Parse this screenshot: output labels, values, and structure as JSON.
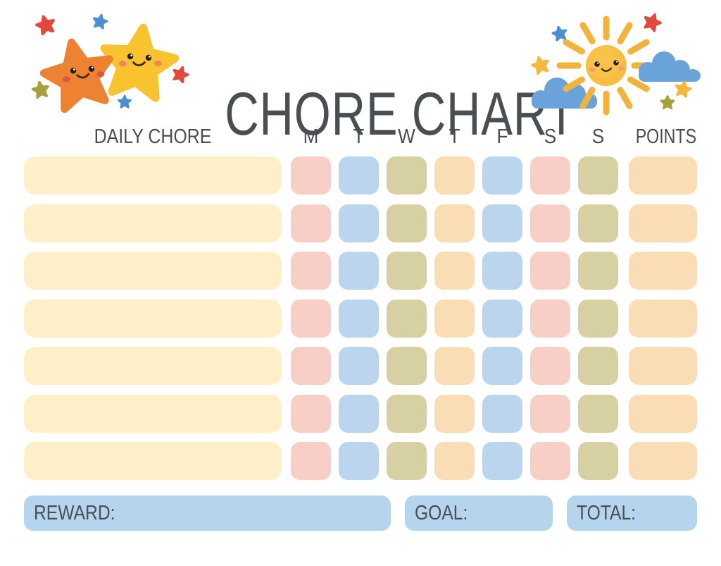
{
  "title": "CHORE CHART",
  "colors": {
    "cream": "#fdf0c9",
    "pink": "#f8cfc7",
    "blue": "#bad5ed",
    "olive": "#d6d0a3",
    "peach": "#fbddb5",
    "footer_blue": "#b5d4ed",
    "text": "#494e53",
    "star_orange": "#ee8233",
    "star_yellow": "#f9c32f",
    "sun_yellow": "#f9bd3f",
    "cloud_blue": "#69a3da"
  },
  "header": {
    "chore_label": "DAILY CHORE",
    "day_labels": [
      "M",
      "T",
      "W",
      "T",
      "F",
      "S",
      "S"
    ],
    "points_label": "POINTS"
  },
  "rows": [
    {
      "chore_value": "",
      "chore_color": "cream",
      "day_colors": [
        "pink",
        "blue",
        "olive",
        "peach",
        "blue",
        "pink",
        "olive"
      ],
      "points_color": "peach",
      "points_value": ""
    },
    {
      "chore_value": "",
      "chore_color": "cream",
      "day_colors": [
        "pink",
        "blue",
        "olive",
        "peach",
        "blue",
        "pink",
        "olive"
      ],
      "points_color": "peach",
      "points_value": ""
    },
    {
      "chore_value": "",
      "chore_color": "cream",
      "day_colors": [
        "pink",
        "blue",
        "olive",
        "peach",
        "blue",
        "pink",
        "olive"
      ],
      "points_color": "peach",
      "points_value": ""
    },
    {
      "chore_value": "",
      "chore_color": "cream",
      "day_colors": [
        "pink",
        "blue",
        "olive",
        "peach",
        "blue",
        "pink",
        "olive"
      ],
      "points_color": "peach",
      "points_value": ""
    },
    {
      "chore_value": "",
      "chore_color": "cream",
      "day_colors": [
        "pink",
        "blue",
        "olive",
        "peach",
        "blue",
        "pink",
        "olive"
      ],
      "points_color": "peach",
      "points_value": ""
    },
    {
      "chore_value": "",
      "chore_color": "cream",
      "day_colors": [
        "pink",
        "blue",
        "olive",
        "peach",
        "blue",
        "pink",
        "olive"
      ],
      "points_color": "peach",
      "points_value": ""
    },
    {
      "chore_value": "",
      "chore_color": "cream",
      "day_colors": [
        "pink",
        "blue",
        "olive",
        "peach",
        "blue",
        "pink",
        "olive"
      ],
      "points_color": "peach",
      "points_value": ""
    }
  ],
  "footer": {
    "reward_label": "REWARD:",
    "reward_value": "",
    "goal_label": "GOAL:",
    "goal_value": "",
    "total_label": "TOTAL:",
    "total_value": ""
  },
  "decorations": {
    "left": [
      "orange-star-icon",
      "yellow-star-icon",
      "mini-star-red-icon",
      "mini-star-blue-icon",
      "mini-star-olive-icon"
    ],
    "right": [
      "sun-icon",
      "cloud-icon",
      "cloud-icon",
      "mini-star-red-icon",
      "mini-star-blue-icon",
      "mini-star-yellow-icon",
      "mini-star-olive-icon"
    ]
  }
}
